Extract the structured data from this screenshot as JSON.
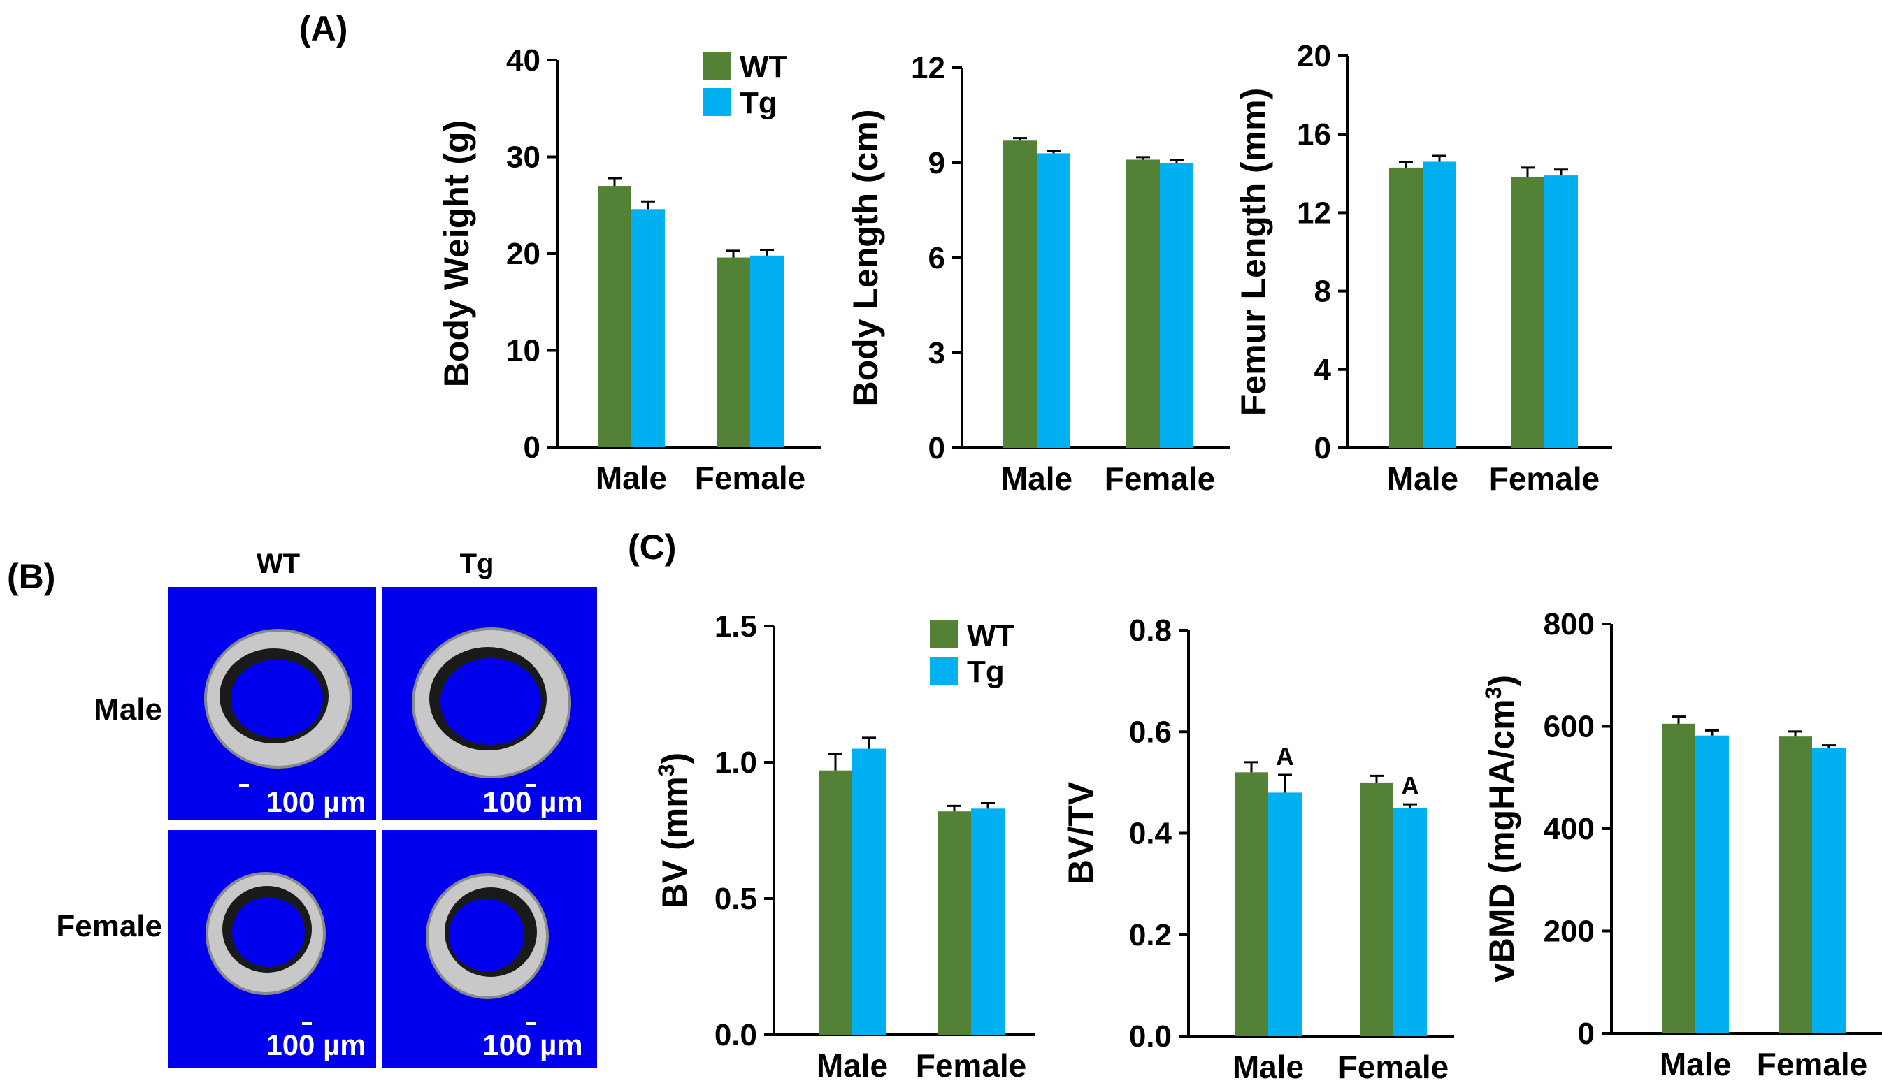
{
  "panels": {
    "a": "(A)",
    "b": "(B)",
    "c": "(C)"
  },
  "colors": {
    "wt": "#538135",
    "tg": "#00B0F0",
    "ct_bg": "#0000EE"
  },
  "legend_a": {
    "wt": "WT",
    "tg": "Tg"
  },
  "legend_c": {
    "wt": "WT",
    "tg": "Tg"
  },
  "ct": {
    "col_wt": "WT",
    "col_tg": "Tg",
    "row_male": "Male",
    "row_female": "Female",
    "scale_male_wt": "100 µm",
    "scale_male_tg": "100 µm",
    "scale_female_wt": "100 µm",
    "scale_female_tg": "100 µm"
  },
  "chart_data": [
    {
      "id": "weight",
      "type": "bar",
      "ylabel": "Body Weight (g)",
      "categories": [
        "Male",
        "Female"
      ],
      "ylim": [
        0,
        40
      ],
      "ticks": [
        0,
        10,
        20,
        30,
        40
      ],
      "tick_labels": [
        "0",
        "10",
        "20",
        "30",
        "40"
      ],
      "series": [
        {
          "name": "WT",
          "values": [
            27.0,
            19.6
          ],
          "errors": [
            0.8,
            0.7
          ]
        },
        {
          "name": "Tg",
          "values": [
            24.6,
            19.8
          ],
          "errors": [
            0.8,
            0.6
          ]
        }
      ],
      "annotations": []
    },
    {
      "id": "length",
      "type": "bar",
      "ylabel": "Body Length (cm)",
      "categories": [
        "Male",
        "Female"
      ],
      "ylim": [
        0,
        12
      ],
      "ticks": [
        0,
        3,
        6,
        9,
        12
      ],
      "tick_labels": [
        "0",
        "3",
        "6",
        "9",
        "12"
      ],
      "series": [
        {
          "name": "WT",
          "values": [
            9.7,
            9.1
          ],
          "errors": [
            0.08,
            0.08
          ]
        },
        {
          "name": "Tg",
          "values": [
            9.3,
            9.0
          ],
          "errors": [
            0.08,
            0.08
          ]
        }
      ],
      "annotations": []
    },
    {
      "id": "femur",
      "type": "bar",
      "ylabel": "Femur Length (mm)",
      "categories": [
        "Male",
        "Female"
      ],
      "ylim": [
        0,
        20
      ],
      "ticks": [
        0,
        4,
        8,
        12,
        16,
        20
      ],
      "tick_labels": [
        "0",
        "4",
        "8",
        "12",
        "16",
        "20"
      ],
      "series": [
        {
          "name": "WT",
          "values": [
            14.3,
            13.8
          ],
          "errors": [
            0.3,
            0.5
          ]
        },
        {
          "name": "Tg",
          "values": [
            14.6,
            13.9
          ],
          "errors": [
            0.3,
            0.3
          ]
        }
      ],
      "annotations": []
    },
    {
      "id": "bv",
      "type": "bar",
      "ylabel": "BV (mm3)",
      "ylabel_main": "BV (mm",
      "ylabel_sup": "3",
      "ylabel_end": ")",
      "categories": [
        "Male",
        "Female"
      ],
      "ylim": [
        0,
        1.5
      ],
      "ticks": [
        0,
        0.5,
        1.0,
        1.5
      ],
      "tick_labels": [
        "0.0",
        "0.5",
        "1.0",
        "1.5"
      ],
      "series": [
        {
          "name": "WT",
          "values": [
            0.97,
            0.82
          ],
          "errors": [
            0.06,
            0.02
          ]
        },
        {
          "name": "Tg",
          "values": [
            1.05,
            0.83
          ],
          "errors": [
            0.04,
            0.02
          ]
        }
      ],
      "annotations": []
    },
    {
      "id": "bvtv",
      "type": "bar",
      "ylabel": "BV/TV",
      "categories": [
        "Male",
        "Female"
      ],
      "ylim": [
        0,
        0.8
      ],
      "ticks": [
        0,
        0.2,
        0.4,
        0.6,
        0.8
      ],
      "tick_labels": [
        "0.0",
        "0.2",
        "0.4",
        "0.6",
        "0.8"
      ],
      "series": [
        {
          "name": "WT",
          "values": [
            0.52,
            0.5
          ],
          "errors": [
            0.02,
            0.013
          ]
        },
        {
          "name": "Tg",
          "values": [
            0.48,
            0.45
          ],
          "errors": [
            0.035,
            0.007
          ]
        }
      ],
      "annotations": [
        {
          "category": 0,
          "series": 1,
          "text": "A"
        },
        {
          "category": 1,
          "series": 1,
          "text": "A"
        }
      ]
    },
    {
      "id": "vbmd",
      "type": "bar",
      "ylabel": "vBMD (mgHA/cm3)",
      "ylabel_main": "vBMD (mgHA/cm",
      "ylabel_sup": "3",
      "ylabel_end": ")",
      "categories": [
        "Male",
        "Female"
      ],
      "ylim": [
        0,
        800
      ],
      "ticks": [
        0,
        200,
        400,
        600,
        800
      ],
      "tick_labels": [
        "0",
        "200",
        "400",
        "600",
        "800"
      ],
      "series": [
        {
          "name": "WT",
          "values": [
            605,
            580
          ],
          "errors": [
            14,
            10
          ]
        },
        {
          "name": "Tg",
          "values": [
            582,
            558
          ],
          "errors": [
            10,
            5
          ]
        }
      ],
      "annotations": []
    }
  ]
}
